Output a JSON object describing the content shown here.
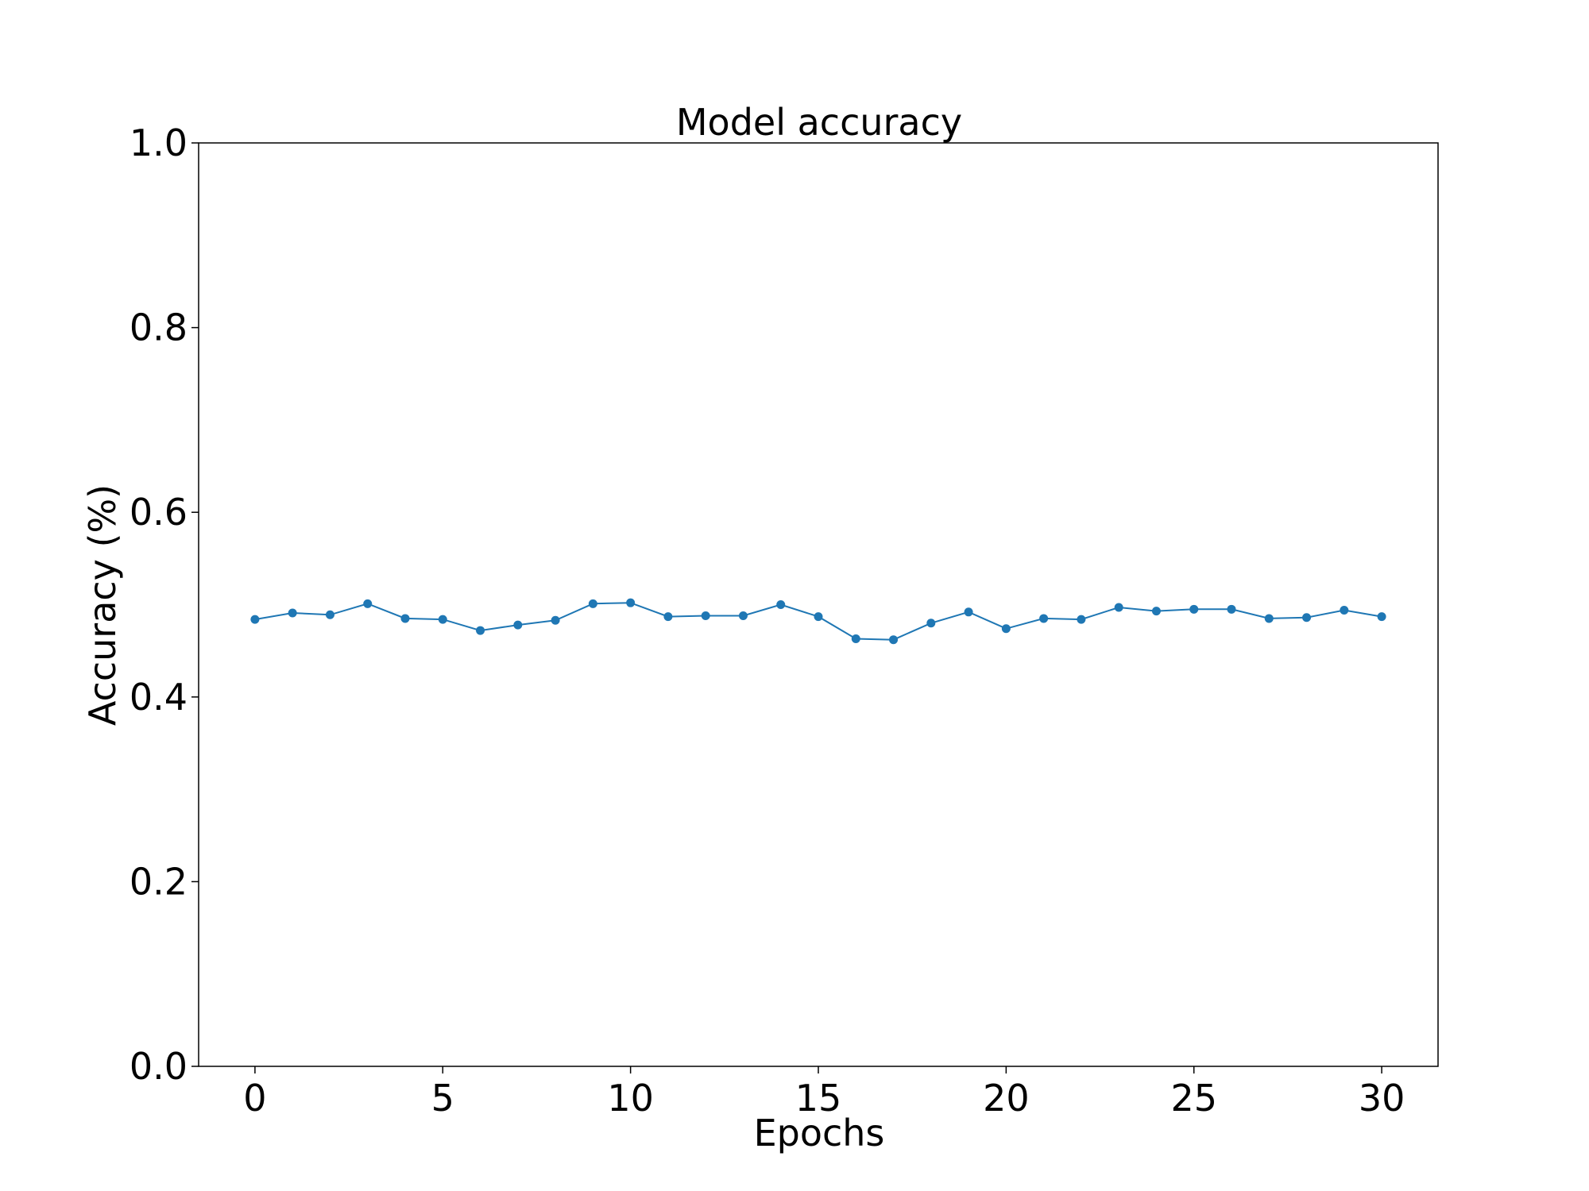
{
  "chart_data": {
    "type": "line",
    "title": "Model accuracy",
    "xlabel": "Epochs",
    "ylabel": "Accuracy (%)",
    "xlim": [
      -1.5,
      31.5
    ],
    "ylim": [
      0.0,
      1.0
    ],
    "xticks": [
      0,
      5,
      10,
      15,
      20,
      25,
      30
    ],
    "xtick_labels": [
      "0",
      "5",
      "10",
      "15",
      "20",
      "25",
      "30"
    ],
    "yticks": [
      0.0,
      0.2,
      0.4,
      0.6,
      0.8,
      1.0
    ],
    "ytick_labels": [
      "0.0",
      "0.2",
      "0.4",
      "0.6",
      "0.8",
      "1.0"
    ],
    "grid": false,
    "series": [
      {
        "color": "#1f77b4",
        "marker": "circle",
        "x": [
          0,
          1,
          2,
          3,
          4,
          5,
          6,
          7,
          8,
          9,
          10,
          11,
          12,
          13,
          14,
          15,
          16,
          17,
          18,
          19,
          20,
          21,
          22,
          23,
          24,
          25,
          26,
          27,
          28,
          29,
          30
        ],
        "y": [
          0.484,
          0.491,
          0.489,
          0.501,
          0.485,
          0.484,
          0.472,
          0.478,
          0.483,
          0.501,
          0.502,
          0.487,
          0.488,
          0.488,
          0.5,
          0.487,
          0.463,
          0.462,
          0.48,
          0.492,
          0.474,
          0.485,
          0.484,
          0.497,
          0.493,
          0.495,
          0.495,
          0.485,
          0.486,
          0.494,
          0.487
        ]
      }
    ]
  }
}
